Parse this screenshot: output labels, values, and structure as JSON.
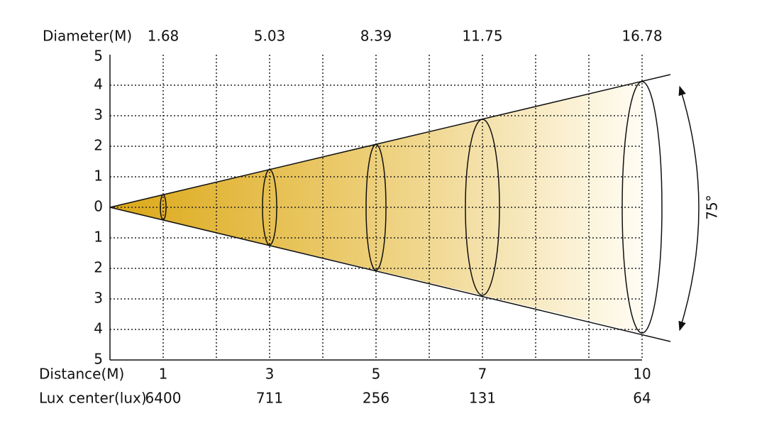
{
  "header": {
    "diameter_label": "Diameter(M)",
    "distance_label": "Distance(M)",
    "lux_label": "Lux center(lux)"
  },
  "diameters": [
    "1.68",
    "5.03",
    "8.39",
    "11.75",
    "16.78"
  ],
  "distances": [
    "1",
    "3",
    "5",
    "7",
    "10"
  ],
  "lux": [
    "6400",
    "711",
    "256",
    "131",
    "64"
  ],
  "y_labels": [
    "5",
    "4",
    "3",
    "2",
    "1",
    "0",
    "1",
    "2",
    "3",
    "4",
    "5"
  ],
  "angle": "75°"
}
